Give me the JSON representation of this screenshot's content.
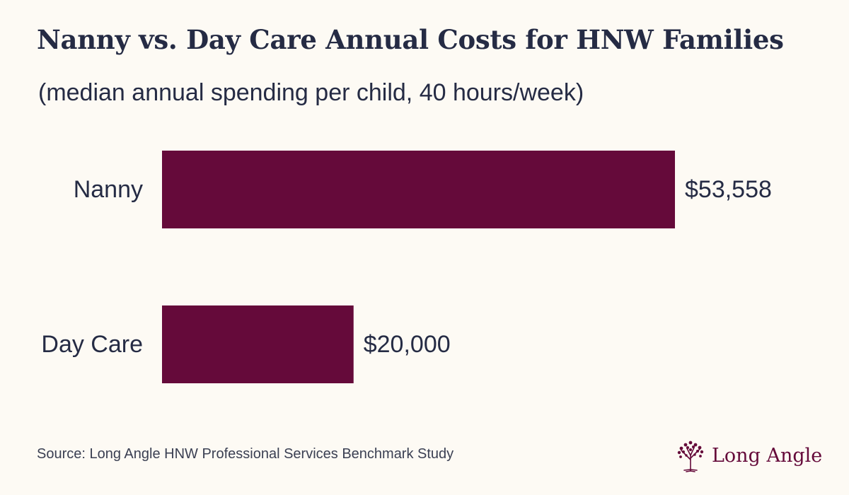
{
  "chart_data": {
    "type": "bar",
    "orientation": "horizontal",
    "title": "Nanny vs. Day Care Annual Costs for HNW Families",
    "subtitle": "(median annual spending per child, 40 hours/week)",
    "categories": [
      "Nanny",
      "Day Care"
    ],
    "values": [
      53558,
      20000
    ],
    "value_labels": [
      "$53,558",
      "$20,000"
    ],
    "xlim": [
      0,
      53558
    ],
    "xlabel": "",
    "ylabel": "",
    "grid": false,
    "bar_color": "#650a3a"
  },
  "source": "Source: Long Angle HNW Professional Services Benchmark Study",
  "brand": {
    "name": "Long Angle",
    "logo_icon": "tree-icon",
    "color": "#650a3a"
  }
}
